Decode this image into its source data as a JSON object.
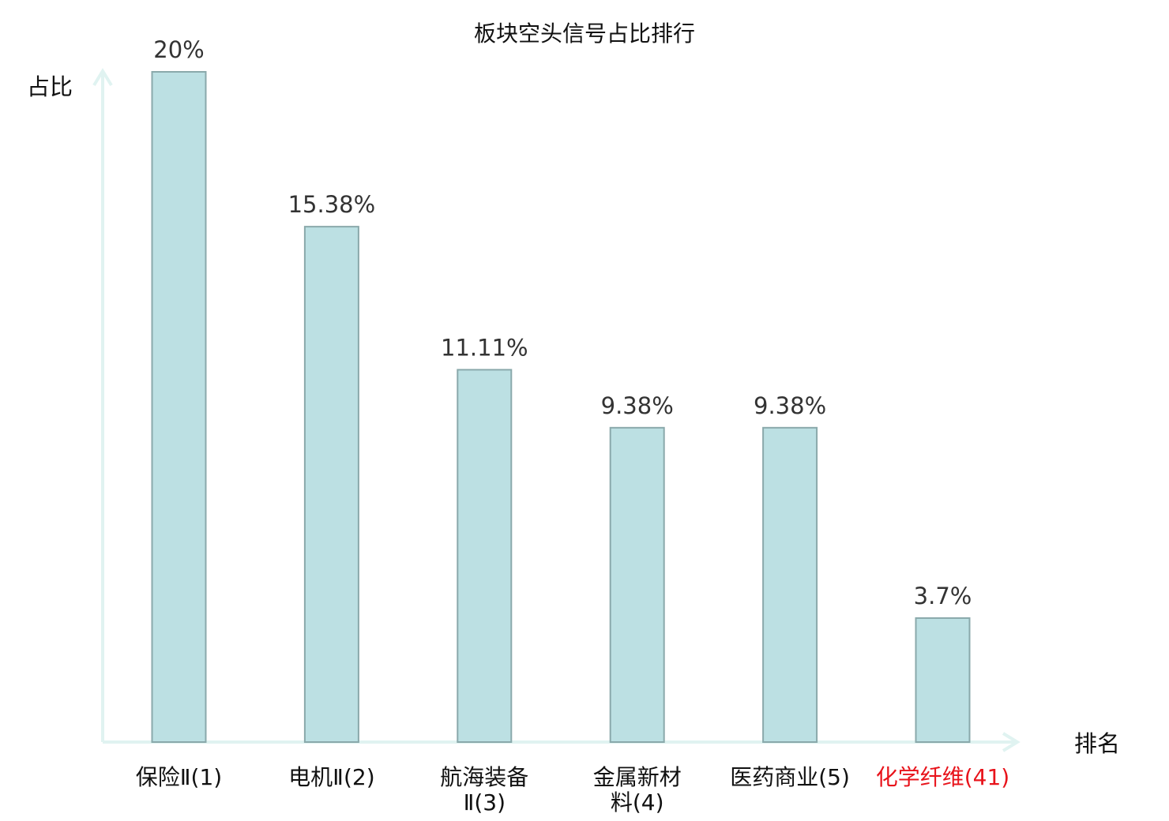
{
  "chart_data": {
    "type": "bar",
    "title": "板块空头信号占比排行",
    "ylabel": "占比",
    "xlabel": "排名",
    "ylim": [
      0,
      20
    ],
    "categories": [
      [
        "保险Ⅱ(1)"
      ],
      [
        "电机Ⅱ(2)"
      ],
      [
        "航海装备",
        "Ⅱ(3)"
      ],
      [
        "金属新材",
        "料(4)"
      ],
      [
        "医药商业(5)"
      ],
      [
        "化学纤维(41)"
      ]
    ],
    "values": [
      20,
      15.38,
      11.11,
      9.38,
      9.38,
      3.7
    ],
    "value_labels": [
      "20%",
      "15.38%",
      "11.11%",
      "9.38%",
      "9.38%",
      "3.7%"
    ],
    "highlight_index": 5,
    "highlight_color": "#e8131b",
    "bar_color": "#bce0e3",
    "bar_edge_color": "#8aa9ab",
    "axis_color": "#e0f3f1",
    "grid": false
  }
}
